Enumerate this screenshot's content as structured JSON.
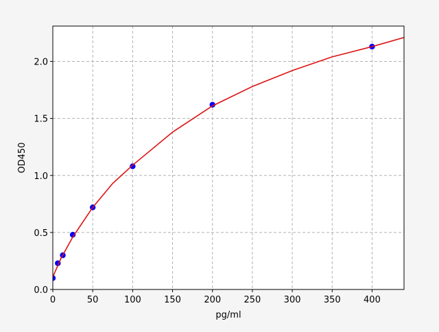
{
  "chart_data": {
    "type": "scatter",
    "xlabel": "pg/ml",
    "ylabel": "OD450",
    "xlim": [
      0,
      440
    ],
    "ylim": [
      0,
      2.31
    ],
    "xticks": [
      0,
      50,
      100,
      150,
      200,
      250,
      300,
      350,
      400
    ],
    "yticks": [
      {
        "value": 0,
        "label": "0.0"
      },
      0.5,
      {
        "value": 1,
        "label": "1.0"
      },
      1.5,
      {
        "value": 2,
        "label": "2.0"
      }
    ],
    "grid": true,
    "points": {
      "color": "#0000ff",
      "x": [
        0,
        6.25,
        12.5,
        25,
        50,
        100,
        200,
        400
      ],
      "y": [
        0.1,
        0.23,
        0.3,
        0.48,
        0.72,
        1.08,
        1.62,
        2.13
      ]
    },
    "fit": {
      "color": "#dd1111",
      "x": [
        0,
        10,
        25,
        50,
        75,
        100,
        150,
        200,
        250,
        300,
        350,
        400,
        440
      ],
      "y": [
        0.11,
        0.27,
        0.46,
        0.72,
        0.93,
        1.09,
        1.38,
        1.61,
        1.78,
        1.92,
        2.04,
        2.13,
        2.21
      ]
    }
  }
}
